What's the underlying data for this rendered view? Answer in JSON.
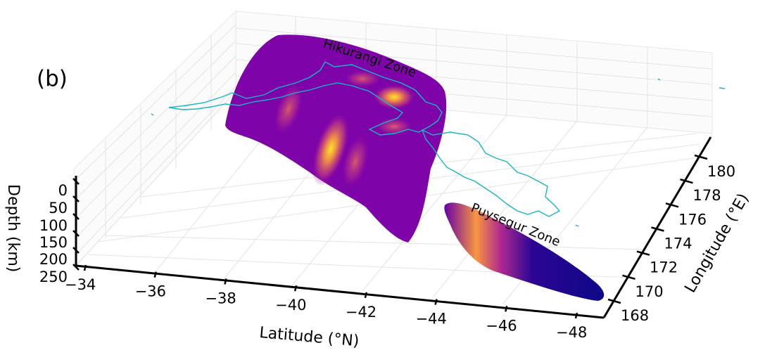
{
  "panel_label": "(b)",
  "chart_data": {
    "type": "3d-surface",
    "x_axis": {
      "label": "Latitude (°N)",
      "ticks": [
        -34,
        -36,
        -38,
        -40,
        -42,
        -44,
        -46,
        -48
      ],
      "tick_labels": [
        "−34",
        "−36",
        "−38",
        "−40",
        "−42",
        "−44",
        "−46",
        "−48"
      ]
    },
    "y_axis": {
      "label": "Longitude (°E)",
      "ticks": [
        168,
        170,
        172,
        174,
        176,
        178,
        180
      ],
      "tick_labels": [
        "168",
        "170",
        "172",
        "174",
        "176",
        "178",
        "180"
      ]
    },
    "z_axis": {
      "label": "Depth (km)",
      "ticks": [
        0,
        50,
        100,
        150,
        200,
        250
      ],
      "tick_labels": [
        "0",
        "50",
        "100",
        "150",
        "200",
        "250"
      ]
    },
    "annotations": [
      "Hikurangi Zone",
      "Puysegur Zone"
    ],
    "colormap": "plasma",
    "colors": {
      "coastline": "#17b5c4",
      "surface_low": "#0d0887",
      "surface_mid": "#7e03a8",
      "surface_high": "#f0f921"
    }
  }
}
